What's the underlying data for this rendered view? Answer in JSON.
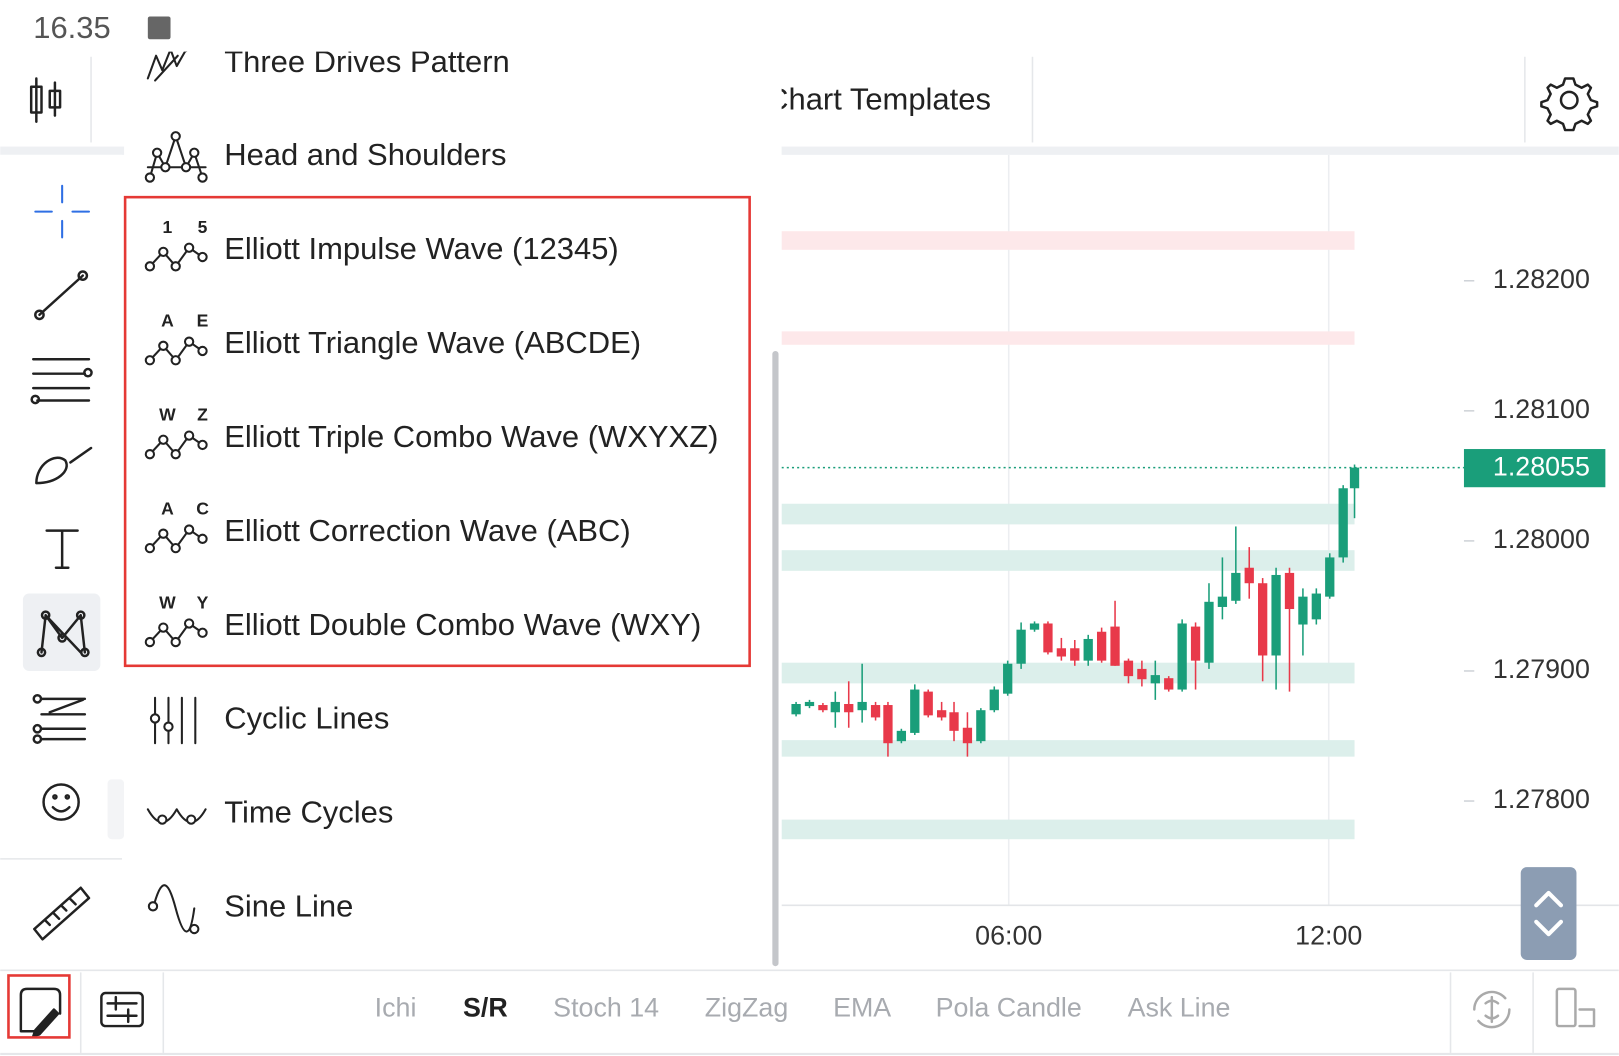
{
  "status": {
    "time": "16.35"
  },
  "toolbar": {
    "templates": "Chart Templates"
  },
  "menu": {
    "items": [
      {
        "label": "Three Drives Pattern"
      },
      {
        "label": "Head and Shoulders"
      },
      {
        "label": "Elliott Impulse Wave (12345)",
        "marks": [
          "1",
          "5"
        ]
      },
      {
        "label": "Elliott Triangle Wave (ABCDE)",
        "marks": [
          "A",
          "E"
        ]
      },
      {
        "label": "Elliott Triple Combo Wave (WXYXZ)",
        "marks": [
          "W",
          "Z"
        ]
      },
      {
        "label": "Elliott Correction Wave (ABC)",
        "marks": [
          "A",
          "C"
        ]
      },
      {
        "label": "Elliott Double Combo Wave (WXY)",
        "marks": [
          "W",
          "Y"
        ]
      },
      {
        "label": "Cyclic Lines"
      },
      {
        "label": "Time Cycles"
      },
      {
        "label": "Sine Line"
      }
    ]
  },
  "chart": {
    "price_labels": [
      "1.28200",
      "1.28100",
      "1.28000",
      "1.27900",
      "1.27800"
    ],
    "current_price": "1.28055",
    "time_labels": [
      "06:00",
      "12:00"
    ]
  },
  "tabs": {
    "items": [
      "Ichi",
      "S/R",
      "Stoch 14",
      "ZigZag",
      "EMA",
      "Pola Candle",
      "Ask Line"
    ],
    "active": 1
  }
}
